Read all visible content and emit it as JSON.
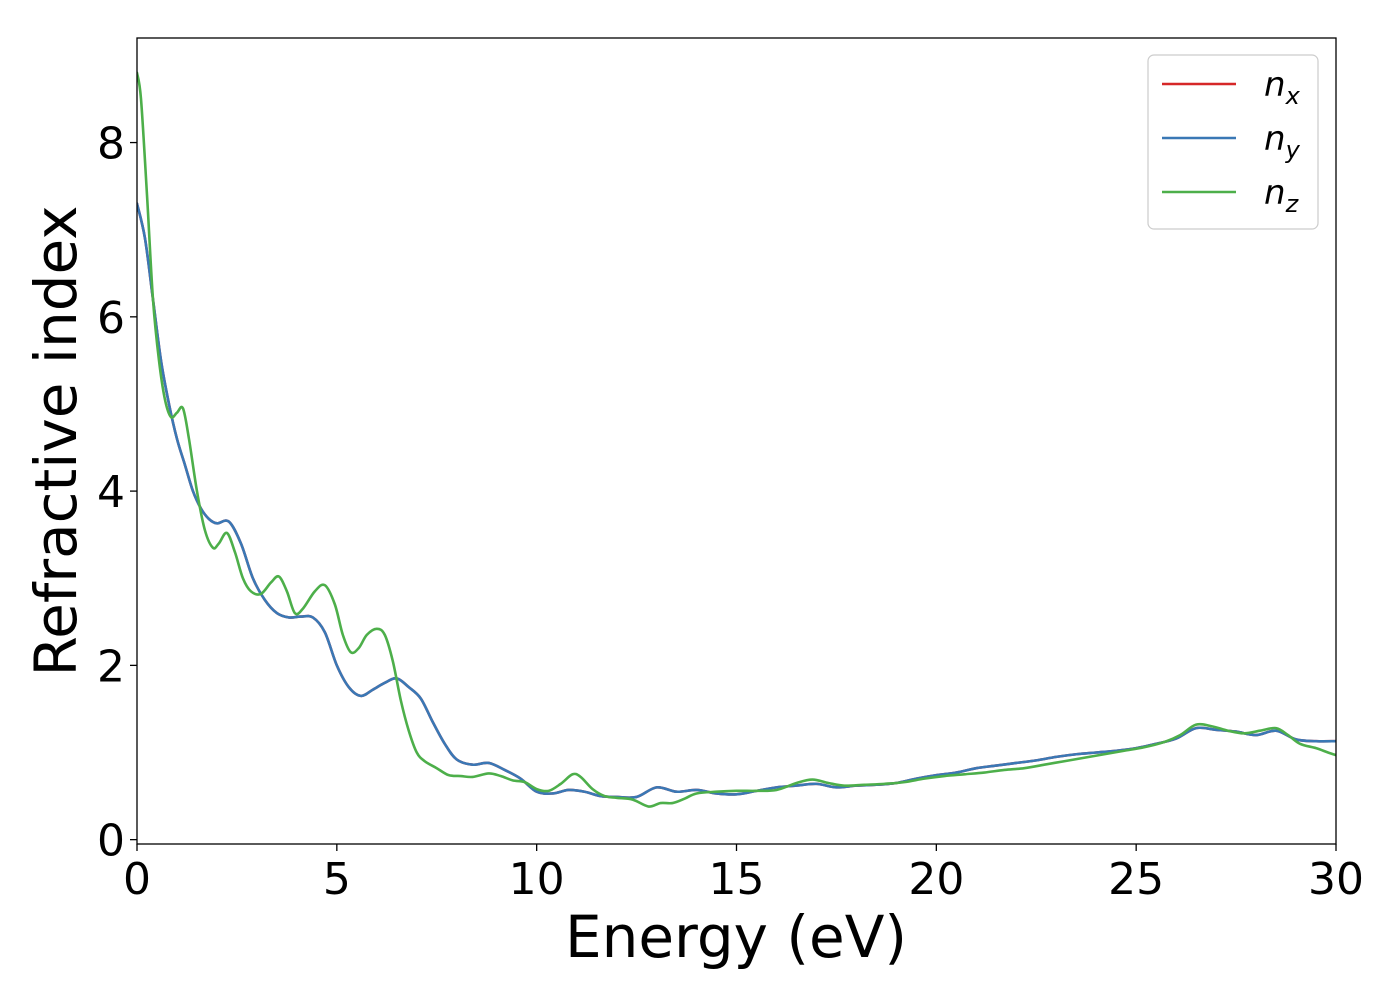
{
  "chart_data": {
    "type": "line",
    "xlabel": "Energy (eV)",
    "ylabel": "Refractive index",
    "xlim": [
      0,
      30
    ],
    "ylim": [
      -0.05,
      9.2
    ],
    "xticks": [
      0,
      5,
      10,
      15,
      20,
      25,
      30
    ],
    "xtick_labels": [
      "0",
      "5",
      "10",
      "15",
      "20",
      "25",
      "30"
    ],
    "yticks": [
      0,
      2,
      4,
      6,
      8
    ],
    "ytick_labels": [
      "0",
      "2",
      "4",
      "6",
      "8"
    ],
    "grid": false,
    "legend_position": "top-right",
    "series": [
      {
        "name": "n",
        "subscript": "x",
        "color": "#d62728",
        "x": [
          0,
          0.2,
          0.4,
          0.6,
          0.8,
          1.0,
          1.2,
          1.4,
          1.6,
          1.8,
          2.0,
          2.3,
          2.6,
          2.9,
          3.2,
          3.5,
          3.8,
          4.1,
          4.4,
          4.7,
          5.0,
          5.3,
          5.6,
          5.9,
          6.2,
          6.5,
          6.8,
          7.1,
          7.4,
          7.7,
          8.0,
          8.4,
          8.8,
          9.2,
          9.6,
          10.0,
          10.4,
          10.8,
          11.2,
          11.6,
          12.0,
          12.5,
          13.0,
          13.5,
          14.0,
          14.5,
          15.0,
          15.5,
          16.0,
          16.5,
          17.0,
          17.5,
          18.0,
          18.5,
          19.0,
          19.5,
          20.0,
          20.5,
          21.0,
          21.5,
          22.0,
          22.5,
          23.0,
          23.5,
          24.0,
          24.5,
          25.0,
          25.5,
          26.0,
          26.5,
          27.0,
          27.5,
          28.0,
          28.5,
          29.0,
          29.5,
          30.0
        ],
        "y": [
          7.3,
          6.9,
          6.2,
          5.5,
          5.0,
          4.6,
          4.3,
          4.0,
          3.8,
          3.68,
          3.63,
          3.65,
          3.4,
          3.0,
          2.75,
          2.6,
          2.55,
          2.56,
          2.55,
          2.38,
          2.0,
          1.75,
          1.65,
          1.72,
          1.8,
          1.85,
          1.75,
          1.62,
          1.35,
          1.1,
          0.92,
          0.86,
          0.88,
          0.8,
          0.7,
          0.55,
          0.53,
          0.57,
          0.55,
          0.5,
          0.49,
          0.49,
          0.6,
          0.55,
          0.57,
          0.53,
          0.52,
          0.56,
          0.6,
          0.62,
          0.64,
          0.6,
          0.62,
          0.63,
          0.65,
          0.7,
          0.74,
          0.77,
          0.82,
          0.85,
          0.88,
          0.91,
          0.95,
          0.98,
          1.0,
          1.02,
          1.05,
          1.1,
          1.16,
          1.28,
          1.26,
          1.24,
          1.2,
          1.25,
          1.15,
          1.13,
          1.13
        ]
      },
      {
        "name": "n",
        "subscript": "y",
        "color": "#3a78b5",
        "x": [
          0,
          0.2,
          0.4,
          0.6,
          0.8,
          1.0,
          1.2,
          1.4,
          1.6,
          1.8,
          2.0,
          2.3,
          2.6,
          2.9,
          3.2,
          3.5,
          3.8,
          4.1,
          4.4,
          4.7,
          5.0,
          5.3,
          5.6,
          5.9,
          6.2,
          6.5,
          6.8,
          7.1,
          7.4,
          7.7,
          8.0,
          8.4,
          8.8,
          9.2,
          9.6,
          10.0,
          10.4,
          10.8,
          11.2,
          11.6,
          12.0,
          12.5,
          13.0,
          13.5,
          14.0,
          14.5,
          15.0,
          15.5,
          16.0,
          16.5,
          17.0,
          17.5,
          18.0,
          18.5,
          19.0,
          19.5,
          20.0,
          20.5,
          21.0,
          21.5,
          22.0,
          22.5,
          23.0,
          23.5,
          24.0,
          24.5,
          25.0,
          25.5,
          26.0,
          26.5,
          27.0,
          27.5,
          28.0,
          28.5,
          29.0,
          29.5,
          30.0
        ],
        "y": [
          7.3,
          6.9,
          6.2,
          5.5,
          5.0,
          4.6,
          4.3,
          4.0,
          3.8,
          3.68,
          3.63,
          3.65,
          3.4,
          3.0,
          2.75,
          2.6,
          2.55,
          2.56,
          2.55,
          2.38,
          2.0,
          1.75,
          1.65,
          1.72,
          1.8,
          1.85,
          1.75,
          1.62,
          1.35,
          1.1,
          0.92,
          0.86,
          0.88,
          0.8,
          0.7,
          0.55,
          0.53,
          0.57,
          0.55,
          0.5,
          0.49,
          0.49,
          0.6,
          0.55,
          0.57,
          0.53,
          0.52,
          0.56,
          0.6,
          0.62,
          0.64,
          0.6,
          0.62,
          0.63,
          0.65,
          0.7,
          0.74,
          0.77,
          0.82,
          0.85,
          0.88,
          0.91,
          0.95,
          0.98,
          1.0,
          1.02,
          1.05,
          1.1,
          1.16,
          1.28,
          1.26,
          1.24,
          1.2,
          1.25,
          1.15,
          1.13,
          1.13
        ]
      },
      {
        "name": "n",
        "subscript": "z",
        "color": "#4daf4a",
        "x": [
          0,
          0.1,
          0.25,
          0.4,
          0.55,
          0.7,
          0.85,
          1.0,
          1.15,
          1.3,
          1.5,
          1.7,
          1.9,
          2.05,
          2.25,
          2.45,
          2.65,
          2.85,
          3.1,
          3.35,
          3.55,
          3.75,
          3.95,
          4.15,
          4.45,
          4.7,
          4.95,
          5.15,
          5.35,
          5.55,
          5.75,
          6.0,
          6.2,
          6.4,
          6.6,
          6.8,
          7.0,
          7.2,
          7.5,
          7.8,
          8.1,
          8.4,
          8.8,
          9.1,
          9.4,
          9.7,
          10.0,
          10.3,
          10.6,
          10.9,
          11.1,
          11.4,
          11.7,
          12.0,
          12.4,
          12.8,
          13.1,
          13.4,
          13.7,
          14.0,
          14.5,
          15.0,
          15.5,
          16.0,
          16.5,
          16.9,
          17.3,
          17.7,
          18.2,
          18.7,
          19.2,
          19.7,
          20.2,
          20.7,
          21.2,
          21.7,
          22.2,
          22.7,
          23.2,
          23.7,
          24.2,
          24.7,
          25.2,
          25.7,
          26.1,
          26.5,
          26.9,
          27.3,
          27.7,
          28.1,
          28.5,
          28.8,
          29.1,
          29.5,
          29.8,
          30.0
        ],
        "y": [
          8.8,
          8.5,
          7.4,
          6.2,
          5.5,
          5.05,
          4.85,
          4.9,
          4.95,
          4.6,
          4.0,
          3.55,
          3.35,
          3.4,
          3.52,
          3.3,
          3.0,
          2.85,
          2.82,
          2.95,
          3.02,
          2.85,
          2.6,
          2.65,
          2.85,
          2.92,
          2.7,
          2.35,
          2.15,
          2.2,
          2.35,
          2.42,
          2.35,
          2.05,
          1.6,
          1.25,
          1.0,
          0.9,
          0.82,
          0.74,
          0.73,
          0.72,
          0.76,
          0.73,
          0.68,
          0.66,
          0.58,
          0.56,
          0.64,
          0.75,
          0.72,
          0.58,
          0.5,
          0.48,
          0.46,
          0.38,
          0.42,
          0.42,
          0.47,
          0.53,
          0.55,
          0.56,
          0.56,
          0.57,
          0.65,
          0.69,
          0.65,
          0.62,
          0.63,
          0.64,
          0.66,
          0.7,
          0.73,
          0.75,
          0.77,
          0.8,
          0.82,
          0.86,
          0.9,
          0.94,
          0.98,
          1.02,
          1.06,
          1.12,
          1.2,
          1.32,
          1.3,
          1.25,
          1.22,
          1.25,
          1.28,
          1.2,
          1.1,
          1.05,
          1.0,
          0.97
        ]
      }
    ]
  }
}
